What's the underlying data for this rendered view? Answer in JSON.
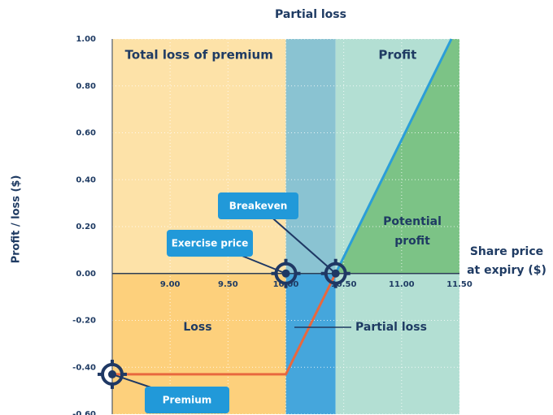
{
  "chart_data": {
    "type": "line",
    "title": "Partial loss",
    "y_label": "Profit / loss ($)",
    "x_label": [
      "Share price",
      "at expiry ($)"
    ],
    "xlim": [
      8.5,
      11.5
    ],
    "ylim": [
      -0.6,
      1.0
    ],
    "xticks": [
      {
        "value": 9,
        "label": "9.00"
      },
      {
        "value": 9.5,
        "label": "9.50"
      },
      {
        "value": 10,
        "label": "10.00"
      },
      {
        "value": 10.5,
        "label": "10.50"
      },
      {
        "value": 11,
        "label": "11.00"
      },
      {
        "value": 11.5,
        "label": "11.50"
      }
    ],
    "yticks": [
      {
        "value": 1,
        "label": "1.00"
      },
      {
        "value": 0.8,
        "label": "0.80"
      },
      {
        "value": 0.6,
        "label": "0.60"
      },
      {
        "value": 0.4,
        "label": "0.40"
      },
      {
        "value": 0.2,
        "label": "0.20"
      },
      {
        "value": 0,
        "label": "0.00"
      },
      {
        "value": -0.2,
        "label": "-0.20"
      },
      {
        "value": -0.4,
        "label": "-0.40"
      },
      {
        "value": -0.6,
        "label": "-0.60"
      }
    ],
    "grid": true,
    "regions": [
      {
        "label": "Total loss of premium",
        "x": [
          8.5,
          10.0
        ],
        "color_above": "#fde2a8",
        "color_below": "#fdd07c"
      },
      {
        "x": [
          10.0,
          10.43
        ],
        "color_above": "#8ac3d2",
        "color_below": "#45a6dc"
      },
      {
        "label": "Profit",
        "x": [
          10.43,
          11.5
        ],
        "color_above": "#b3dfd3",
        "color_below": "#b3dfd3"
      }
    ],
    "series": [
      {
        "color": "#e8683e",
        "x": [
          8.5,
          10.0,
          10.43
        ],
        "values": [
          -0.43,
          -0.43,
          0
        ]
      },
      {
        "color": "#2b9ed8",
        "x": [
          10.43,
          11.43
        ],
        "values": [
          0,
          1.0
        ]
      }
    ],
    "profit_color": "#7cc386",
    "annotations": {
      "loss": "Loss",
      "partial_loss": "Partial loss",
      "potential_profit": [
        "Potential",
        "profit"
      ]
    },
    "callouts": {
      "breakeven": "Breakeven",
      "exercise_price": "Exercise price",
      "premium": "Premium"
    }
  }
}
